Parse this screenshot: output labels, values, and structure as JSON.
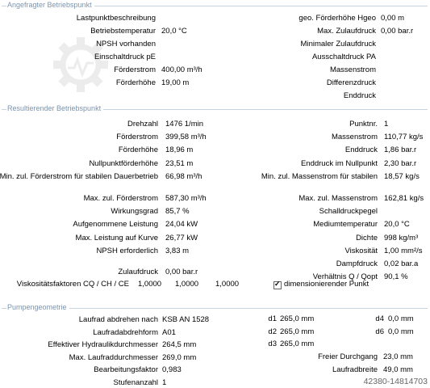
{
  "sections": {
    "requested": "Angefragter Betriebspunkt",
    "result": "Resultierender Betriebspunkt",
    "geometry": "Pumpengeometrie"
  },
  "req_left": [
    {
      "label": "Lastpunktbeschreibung",
      "value": ""
    },
    {
      "label": "Betriebstemperatur",
      "value": "20,0 °C"
    },
    {
      "label": "NPSH vorhanden",
      "value": ""
    },
    {
      "label": "Einschaltdruck pE",
      "value": ""
    },
    {
      "label": "Förderstrom",
      "value": "400,00 m³/h"
    },
    {
      "label": "Förderhöhe",
      "value": "19,00 m"
    }
  ],
  "req_right": [
    {
      "label": "geo. Förderhöhe Hgeo",
      "value": "0,00 m"
    },
    {
      "label": "Max. Zulaufdruck",
      "value": "0,00 bar.r"
    },
    {
      "label": "Minimaler Zulaufdruck",
      "value": ""
    },
    {
      "label": "Ausschaltdruck PA",
      "value": ""
    },
    {
      "label": "Massenstrom",
      "value": ""
    },
    {
      "label": "Differenzdruck",
      "value": ""
    },
    {
      "label": "Enddruck",
      "value": ""
    }
  ],
  "res_left": [
    {
      "label": "Drehzahl",
      "value": "1476 1/min"
    },
    {
      "label": "Förderstrom",
      "value": "399,58 m³/h"
    },
    {
      "label": "Förderhöhe",
      "value": "18,96 m"
    },
    {
      "label": "Nullpunktförderhöhe",
      "value": "23,51 m"
    },
    {
      "label": "Min. zul. Förderstrom für stabilen Dauerbetrieb",
      "value": "66,98 m³/h"
    }
  ],
  "res_right": [
    {
      "label": "Punktnr.",
      "value": "1"
    },
    {
      "label": "Massenstrom",
      "value": "110,77 kg/s"
    },
    {
      "label": "Enddruck",
      "value": "1,86 bar.r"
    },
    {
      "label": "Enddruck im Nullpunkt",
      "value": "2,30 bar.r"
    },
    {
      "label": "Min. zul. Massenstrom für stabilen",
      "value": "18,57 kg/s"
    }
  ],
  "res_left2": [
    {
      "label": "Max. zul. Förderstrom",
      "value": "587,30 m³/h"
    },
    {
      "label": "Wirkungsgrad",
      "value": "85,7 %"
    },
    {
      "label": "Aufgenommene Leistung",
      "value": "24,04 kW"
    },
    {
      "label": "Max. Leistung auf Kurve",
      "value": "26,77 kW"
    },
    {
      "label": "NPSH erforderlich",
      "value": "3,83 m"
    }
  ],
  "res_right2": [
    {
      "label": "Max. zul. Massenstrom",
      "value": "162,81 kg/s"
    },
    {
      "label": "Schalldruckpegel",
      "value": ""
    },
    {
      "label": "Mediumtemperatur",
      "value": "20,0 °C"
    },
    {
      "label": "Dichte",
      "value": "998 kg/m³"
    },
    {
      "label": "Viskosität",
      "value": "1,00 mm²/s"
    },
    {
      "label": "Dampfdruck",
      "value": "0,02 bar.a"
    },
    {
      "label": "Verhältnis Q / Qopt",
      "value": "90,1 %"
    }
  ],
  "zulaufdruck": {
    "label": "Zulaufdruck",
    "value": "0,00 bar.r"
  },
  "visc": {
    "label": "Viskositätsfaktoren CQ / CH / CE",
    "v1": "1,0000",
    "v2": "1,0000",
    "v3": "1,0000"
  },
  "dim_checkbox": {
    "label": "dimensionierender Punkt",
    "checked": true
  },
  "geo_left": [
    {
      "label": "Laufrad abdrehen nach",
      "value": "KSB AN 1528"
    },
    {
      "label": "Laufradabdrehform",
      "value": "A01"
    },
    {
      "label": "Effektiver Hydraulikdurchmesser",
      "value": "264,5 mm"
    },
    {
      "label": "Max. Laufraddurchmesser",
      "value": "269,0 mm"
    },
    {
      "label": "Bearbeitungsfaktor",
      "value": "0,983"
    },
    {
      "label": "Stufenanzahl",
      "value": "1"
    }
  ],
  "geo_d": [
    {
      "label": "d1",
      "value": "265,0 mm"
    },
    {
      "label": "d2",
      "value": "265,0 mm"
    },
    {
      "label": "d3",
      "value": "265,0 mm"
    }
  ],
  "geo_d2": [
    {
      "label": "d4",
      "value": "0,0 mm"
    },
    {
      "label": "d6",
      "value": "0,0 mm"
    }
  ],
  "geo_right": [
    {
      "label": "Freier Durchgang",
      "value": "23,0 mm"
    },
    {
      "label": "Laufradbreite",
      "value": "49,0 mm"
    }
  ],
  "image_id": "42380-14814703"
}
